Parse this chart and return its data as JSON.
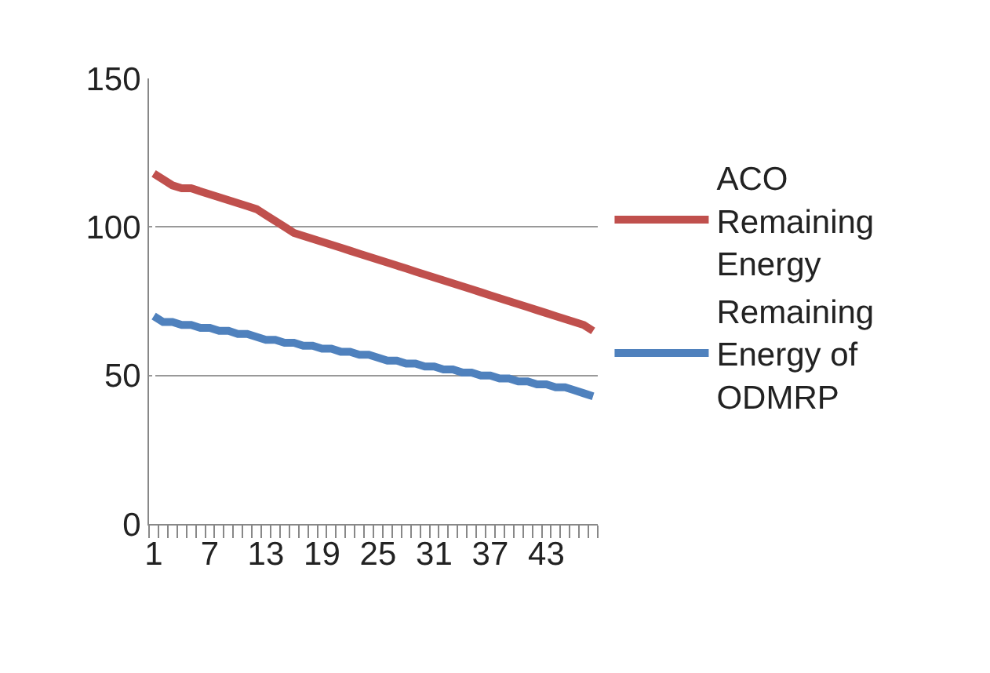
{
  "chart_data": {
    "type": "line",
    "categories": [
      "1",
      null,
      null,
      null,
      null,
      null,
      "7",
      null,
      null,
      null,
      null,
      null,
      "13",
      null,
      null,
      null,
      null,
      null,
      "19",
      null,
      null,
      null,
      null,
      null,
      "25",
      null,
      null,
      null,
      null,
      null,
      "31",
      null,
      null,
      null,
      null,
      null,
      "37",
      null,
      null,
      null,
      null,
      null,
      "43",
      null,
      null,
      null,
      null,
      null
    ],
    "series": [
      {
        "name": "ACO Remaining Energy",
        "color": "#c0504d",
        "values": [
          118,
          116,
          114,
          113,
          113,
          112,
          111,
          110,
          109,
          108,
          107,
          106,
          104,
          102,
          100,
          98,
          97,
          96,
          95,
          94,
          93,
          92,
          91,
          90,
          89,
          88,
          87,
          86,
          85,
          84,
          83,
          82,
          81,
          80,
          79,
          78,
          77,
          76,
          75,
          74,
          73,
          72,
          71,
          70,
          69,
          68,
          67,
          65
        ]
      },
      {
        "name": "Remaining Energy of ODMRP",
        "color": "#4f81bd",
        "values": [
          70,
          68,
          68,
          67,
          67,
          66,
          66,
          65,
          65,
          64,
          64,
          63,
          62,
          62,
          61,
          61,
          60,
          60,
          59,
          59,
          58,
          58,
          57,
          57,
          56,
          55,
          55,
          54,
          54,
          53,
          53,
          52,
          52,
          51,
          51,
          50,
          50,
          49,
          49,
          48,
          48,
          47,
          47,
          46,
          46,
          45,
          44,
          43
        ]
      }
    ],
    "ylim": [
      0,
      150
    ],
    "yticks": [
      0,
      50,
      100,
      150
    ],
    "grid": "y",
    "legend": "right",
    "marker": "none",
    "line_style": "solid"
  }
}
